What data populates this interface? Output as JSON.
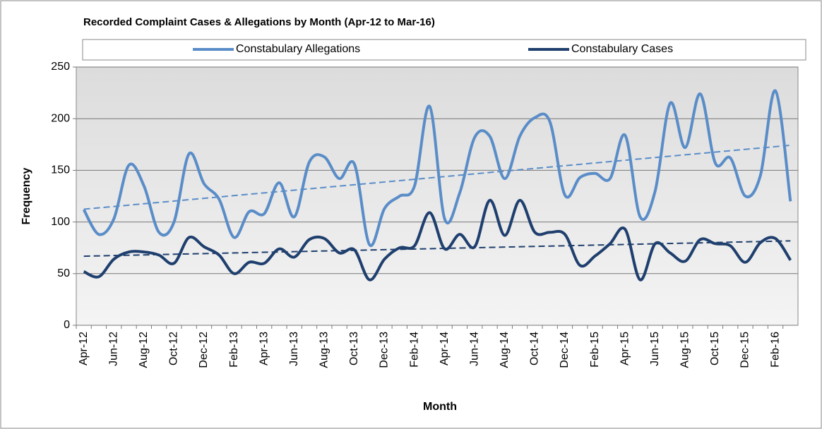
{
  "chart_data": {
    "type": "line",
    "title": "Recorded Complaint Cases & Allegations by Month (Apr-12  to Mar-16)",
    "xlabel": "Month",
    "ylabel": "Frequency",
    "categories": [
      "Apr-12",
      null,
      "Jun-12",
      null,
      "Aug-12",
      null,
      "Oct-12",
      null,
      "Dec-12",
      null,
      "Feb-13",
      null,
      "Apr-13",
      null,
      "Jun-13",
      null,
      "Aug-13",
      null,
      "Oct-13",
      null,
      "Dec-13",
      null,
      "Feb-14",
      null,
      "Apr-14",
      null,
      "Jun-14",
      null,
      "Aug-14",
      null,
      "Oct-14",
      null,
      "Dec-14",
      null,
      "Feb-15",
      null,
      "Apr-15",
      null,
      "Jun-15",
      null,
      "Aug-15",
      null,
      "Oct-15",
      null,
      "Dec-15",
      null,
      "Feb-16",
      null
    ],
    "series": [
      {
        "name": "Constabulary Allegations",
        "color": "#5a8dc8",
        "values": [
          112,
          88,
          103,
          155,
          135,
          90,
          100,
          166,
          137,
          122,
          85,
          110,
          108,
          138,
          105,
          158,
          163,
          142,
          156,
          78,
          113,
          125,
          135,
          212,
          103,
          128,
          182,
          183,
          142,
          183,
          201,
          197,
          126,
          143,
          147,
          142,
          184,
          105,
          130,
          215,
          172,
          224,
          157,
          162,
          125,
          145,
          227,
          120
        ]
      },
      {
        "name": "Constabulary Cases",
        "color": "#1f3f6e",
        "values": [
          52,
          47,
          64,
          71,
          71,
          68,
          60,
          85,
          76,
          68,
          50,
          61,
          60,
          74,
          66,
          83,
          84,
          70,
          73,
          44,
          64,
          75,
          77,
          109,
          74,
          88,
          76,
          121,
          87,
          121,
          90,
          90,
          88,
          58,
          67,
          79,
          93,
          44,
          79,
          70,
          62,
          83,
          79,
          77,
          61,
          80,
          84,
          63
        ]
      }
    ],
    "ylim": [
      0,
      250
    ],
    "yticks": [
      0,
      50,
      100,
      150,
      200,
      250
    ],
    "grid": true,
    "smooth": true,
    "trendline": true,
    "legend": "top"
  }
}
